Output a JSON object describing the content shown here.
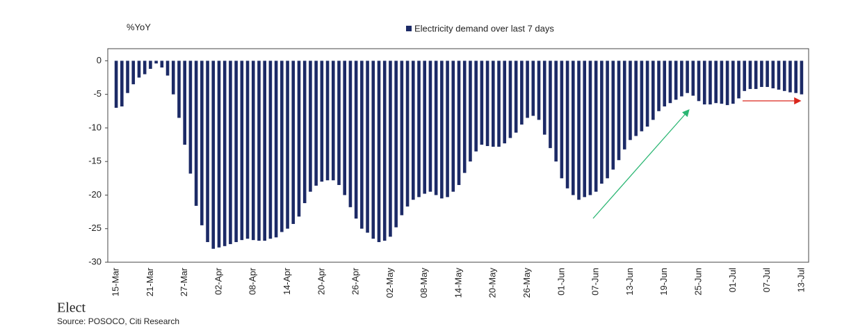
{
  "chart_data": {
    "type": "bar",
    "ylabel": "%YoY",
    "legend_label": "Electricity demand over last 7 days",
    "source": "Source: POSOCO, Citi Research",
    "stray_text": "Elect",
    "color": "#1c2a66",
    "ylim": [
      -30,
      1.8
    ],
    "yticks": [
      0,
      -5,
      -10,
      -15,
      -20,
      -25,
      -30
    ],
    "grid": false,
    "categories": [
      "15-Mar",
      null,
      null,
      null,
      null,
      null,
      "21-Mar",
      null,
      null,
      null,
      null,
      null,
      "27-Mar",
      null,
      null,
      null,
      null,
      null,
      "02-Apr",
      null,
      null,
      null,
      null,
      null,
      "08-Apr",
      null,
      null,
      null,
      null,
      null,
      "14-Apr",
      null,
      null,
      null,
      null,
      null,
      "20-Apr",
      null,
      null,
      null,
      null,
      null,
      "26-Apr",
      null,
      null,
      null,
      null,
      null,
      "02-May",
      null,
      null,
      null,
      null,
      null,
      "08-May",
      null,
      null,
      null,
      null,
      null,
      "14-May",
      null,
      null,
      null,
      null,
      null,
      "20-May",
      null,
      null,
      null,
      null,
      null,
      "26-May",
      null,
      null,
      null,
      null,
      null,
      "01-Jun",
      null,
      null,
      null,
      null,
      null,
      "07-Jun",
      null,
      null,
      null,
      null,
      null,
      "13-Jun",
      null,
      null,
      null,
      null,
      null,
      "19-Jun",
      null,
      null,
      null,
      null,
      null,
      "25-Jun",
      null,
      null,
      null,
      null,
      null,
      "01-Jul",
      null,
      null,
      null,
      null,
      null,
      "07-Jul",
      null,
      null,
      null,
      null,
      null,
      "13-Jul"
    ],
    "values": [
      -7,
      -6.8,
      -4.8,
      -3.5,
      -2.5,
      -2,
      -1.2,
      -0.4,
      -1,
      -2.2,
      -5,
      -8.5,
      -12.5,
      -16.8,
      -21.6,
      -24.5,
      -27,
      -28,
      -27.8,
      -27.6,
      -27.3,
      -27,
      -26.7,
      -26.5,
      -26.7,
      -26.8,
      -26.8,
      -26.5,
      -26.3,
      -25.5,
      -25,
      -24.3,
      -23.2,
      -21.2,
      -19.5,
      -18.6,
      -18,
      -17.8,
      -17.8,
      -18.5,
      -20,
      -21.8,
      -23.5,
      -25,
      -25.6,
      -26.5,
      -27,
      -26.8,
      -26.2,
      -24.8,
      -23,
      -21.7,
      -20.7,
      -20.3,
      -19.8,
      -19.5,
      -20,
      -20.5,
      -20.3,
      -19.5,
      -18.5,
      -16.7,
      -15,
      -13.5,
      -12.5,
      -12.7,
      -12.8,
      -12.8,
      -12.3,
      -11.5,
      -10.7,
      -9.5,
      -8.5,
      -8.2,
      -8.8,
      -11,
      -13,
      -15,
      -17.5,
      -19,
      -20,
      -20.7,
      -20.3,
      -20,
      -19.5,
      -18.3,
      -17.5,
      -16.2,
      -14.8,
      -13.2,
      -11.8,
      -11.2,
      -10.5,
      -9.8,
      -8.8,
      -7.5,
      -6.8,
      -6.3,
      -5.8,
      -5.3,
      -4.8,
      -5.2,
      -6,
      -6.5,
      -6.5,
      -6.3,
      -6.4,
      -6.6,
      -6.4,
      -5.6,
      -4.5,
      -4.2,
      -4.2,
      -3.9,
      -3.9,
      -4.1,
      -4.3,
      -4.5,
      -4.7,
      -4.8,
      -5
    ]
  }
}
